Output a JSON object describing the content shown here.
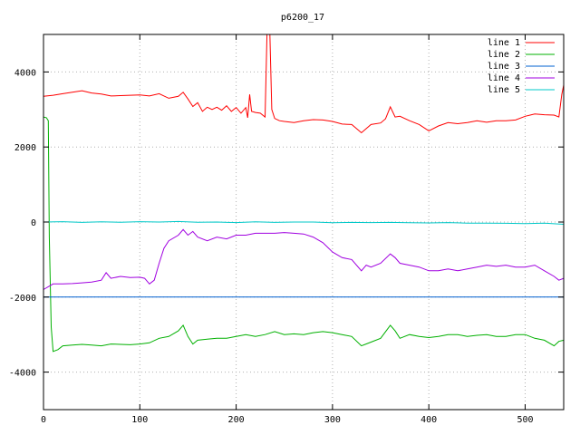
{
  "chart_data": {
    "type": "line",
    "title": "p6200_17",
    "xlabel": "",
    "ylabel": "",
    "xlim": [
      0,
      540
    ],
    "ylim": [
      -5000,
      5000
    ],
    "x_ticks": [
      0,
      100,
      200,
      300,
      400,
      500
    ],
    "y_ticks": [
      -4000,
      -2000,
      0,
      2000,
      4000
    ],
    "grid": true,
    "legend_position": "top-right",
    "series": [
      {
        "name": "line 1",
        "color": "#ff0000",
        "points": [
          [
            0,
            3350
          ],
          [
            10,
            3380
          ],
          [
            20,
            3420
          ],
          [
            30,
            3460
          ],
          [
            40,
            3500
          ],
          [
            50,
            3440
          ],
          [
            60,
            3410
          ],
          [
            70,
            3360
          ],
          [
            80,
            3370
          ],
          [
            90,
            3380
          ],
          [
            100,
            3390
          ],
          [
            110,
            3360
          ],
          [
            120,
            3420
          ],
          [
            130,
            3300
          ],
          [
            140,
            3350
          ],
          [
            145,
            3460
          ],
          [
            150,
            3280
          ],
          [
            155,
            3080
          ],
          [
            160,
            3180
          ],
          [
            165,
            2950
          ],
          [
            170,
            3060
          ],
          [
            175,
            3000
          ],
          [
            180,
            3060
          ],
          [
            185,
            2980
          ],
          [
            190,
            3100
          ],
          [
            195,
            2950
          ],
          [
            200,
            3050
          ],
          [
            205,
            2900
          ],
          [
            210,
            3050
          ],
          [
            212,
            2780
          ],
          [
            214,
            3400
          ],
          [
            216,
            2950
          ],
          [
            220,
            2920
          ],
          [
            225,
            2900
          ],
          [
            230,
            2800
          ],
          [
            232,
            5000
          ],
          [
            235,
            5000
          ],
          [
            237,
            3000
          ],
          [
            240,
            2760
          ],
          [
            245,
            2700
          ],
          [
            250,
            2680
          ],
          [
            260,
            2650
          ],
          [
            270,
            2700
          ],
          [
            280,
            2730
          ],
          [
            290,
            2720
          ],
          [
            300,
            2680
          ],
          [
            310,
            2610
          ],
          [
            320,
            2600
          ],
          [
            330,
            2380
          ],
          [
            340,
            2600
          ],
          [
            350,
            2640
          ],
          [
            355,
            2750
          ],
          [
            360,
            3070
          ],
          [
            365,
            2800
          ],
          [
            370,
            2820
          ],
          [
            380,
            2700
          ],
          [
            390,
            2600
          ],
          [
            400,
            2430
          ],
          [
            410,
            2560
          ],
          [
            420,
            2650
          ],
          [
            430,
            2620
          ],
          [
            440,
            2650
          ],
          [
            450,
            2700
          ],
          [
            460,
            2660
          ],
          [
            470,
            2700
          ],
          [
            480,
            2700
          ],
          [
            490,
            2720
          ],
          [
            500,
            2820
          ],
          [
            510,
            2880
          ],
          [
            520,
            2860
          ],
          [
            530,
            2850
          ],
          [
            535,
            2800
          ],
          [
            538,
            3400
          ],
          [
            540,
            3650
          ]
        ]
      },
      {
        "name": "line 2",
        "color": "#00b000",
        "points": [
          [
            0,
            2800
          ],
          [
            3,
            2780
          ],
          [
            5,
            2700
          ],
          [
            6,
            -400
          ],
          [
            8,
            -2800
          ],
          [
            10,
            -3450
          ],
          [
            15,
            -3400
          ],
          [
            20,
            -3300
          ],
          [
            30,
            -3280
          ],
          [
            40,
            -3260
          ],
          [
            50,
            -3280
          ],
          [
            60,
            -3300
          ],
          [
            70,
            -3250
          ],
          [
            80,
            -3260
          ],
          [
            90,
            -3270
          ],
          [
            100,
            -3250
          ],
          [
            110,
            -3220
          ],
          [
            120,
            -3100
          ],
          [
            130,
            -3050
          ],
          [
            140,
            -2900
          ],
          [
            145,
            -2750
          ],
          [
            150,
            -3050
          ],
          [
            155,
            -3250
          ],
          [
            160,
            -3150
          ],
          [
            170,
            -3120
          ],
          [
            180,
            -3100
          ],
          [
            190,
            -3100
          ],
          [
            200,
            -3050
          ],
          [
            210,
            -3000
          ],
          [
            220,
            -3050
          ],
          [
            230,
            -3000
          ],
          [
            240,
            -2920
          ],
          [
            250,
            -3000
          ],
          [
            260,
            -2980
          ],
          [
            270,
            -3000
          ],
          [
            280,
            -2950
          ],
          [
            290,
            -2920
          ],
          [
            300,
            -2950
          ],
          [
            310,
            -3000
          ],
          [
            320,
            -3050
          ],
          [
            330,
            -3300
          ],
          [
            340,
            -3200
          ],
          [
            350,
            -3100
          ],
          [
            360,
            -2750
          ],
          [
            365,
            -2900
          ],
          [
            370,
            -3100
          ],
          [
            380,
            -3000
          ],
          [
            390,
            -3050
          ],
          [
            400,
            -3080
          ],
          [
            410,
            -3050
          ],
          [
            420,
            -3000
          ],
          [
            430,
            -3000
          ],
          [
            440,
            -3050
          ],
          [
            450,
            -3020
          ],
          [
            460,
            -3000
          ],
          [
            470,
            -3050
          ],
          [
            480,
            -3050
          ],
          [
            490,
            -3000
          ],
          [
            500,
            -3000
          ],
          [
            510,
            -3100
          ],
          [
            520,
            -3150
          ],
          [
            530,
            -3300
          ],
          [
            535,
            -3180
          ],
          [
            540,
            -3150
          ]
        ]
      },
      {
        "name": "line 3",
        "color": "#0060d0",
        "points": [
          [
            0,
            -2000
          ],
          [
            540,
            -2000
          ]
        ]
      },
      {
        "name": "line 4",
        "color": "#a000e0",
        "points": [
          [
            0,
            -1800
          ],
          [
            10,
            -1650
          ],
          [
            20,
            -1650
          ],
          [
            30,
            -1640
          ],
          [
            40,
            -1620
          ],
          [
            50,
            -1600
          ],
          [
            60,
            -1550
          ],
          [
            65,
            -1350
          ],
          [
            70,
            -1500
          ],
          [
            80,
            -1450
          ],
          [
            90,
            -1480
          ],
          [
            100,
            -1470
          ],
          [
            105,
            -1500
          ],
          [
            110,
            -1650
          ],
          [
            115,
            -1550
          ],
          [
            120,
            -1100
          ],
          [
            125,
            -700
          ],
          [
            130,
            -500
          ],
          [
            140,
            -350
          ],
          [
            145,
            -200
          ],
          [
            150,
            -350
          ],
          [
            155,
            -250
          ],
          [
            160,
            -400
          ],
          [
            170,
            -500
          ],
          [
            180,
            -400
          ],
          [
            190,
            -450
          ],
          [
            200,
            -350
          ],
          [
            210,
            -350
          ],
          [
            220,
            -300
          ],
          [
            230,
            -300
          ],
          [
            240,
            -300
          ],
          [
            250,
            -280
          ],
          [
            260,
            -300
          ],
          [
            270,
            -320
          ],
          [
            280,
            -400
          ],
          [
            290,
            -550
          ],
          [
            300,
            -800
          ],
          [
            310,
            -950
          ],
          [
            320,
            -1000
          ],
          [
            330,
            -1300
          ],
          [
            335,
            -1150
          ],
          [
            340,
            -1200
          ],
          [
            350,
            -1100
          ],
          [
            360,
            -850
          ],
          [
            365,
            -950
          ],
          [
            370,
            -1100
          ],
          [
            380,
            -1150
          ],
          [
            390,
            -1200
          ],
          [
            400,
            -1300
          ],
          [
            410,
            -1300
          ],
          [
            420,
            -1250
          ],
          [
            430,
            -1300
          ],
          [
            440,
            -1250
          ],
          [
            450,
            -1200
          ],
          [
            460,
            -1150
          ],
          [
            470,
            -1180
          ],
          [
            480,
            -1150
          ],
          [
            490,
            -1200
          ],
          [
            500,
            -1200
          ],
          [
            510,
            -1150
          ],
          [
            520,
            -1300
          ],
          [
            530,
            -1450
          ],
          [
            535,
            -1550
          ],
          [
            540,
            -1500
          ]
        ]
      },
      {
        "name": "line 5",
        "color": "#00c8c8",
        "points": [
          [
            0,
            0
          ],
          [
            20,
            10
          ],
          [
            40,
            -10
          ],
          [
            60,
            5
          ],
          [
            80,
            -5
          ],
          [
            100,
            10
          ],
          [
            120,
            0
          ],
          [
            140,
            15
          ],
          [
            160,
            -5
          ],
          [
            180,
            0
          ],
          [
            200,
            -15
          ],
          [
            220,
            5
          ],
          [
            240,
            -10
          ],
          [
            260,
            0
          ],
          [
            280,
            0
          ],
          [
            300,
            -20
          ],
          [
            320,
            -10
          ],
          [
            340,
            -15
          ],
          [
            360,
            -10
          ],
          [
            380,
            -20
          ],
          [
            400,
            -25
          ],
          [
            420,
            -15
          ],
          [
            440,
            -30
          ],
          [
            460,
            -30
          ],
          [
            480,
            -35
          ],
          [
            500,
            -40
          ],
          [
            520,
            -30
          ],
          [
            540,
            -60
          ]
        ]
      }
    ]
  }
}
